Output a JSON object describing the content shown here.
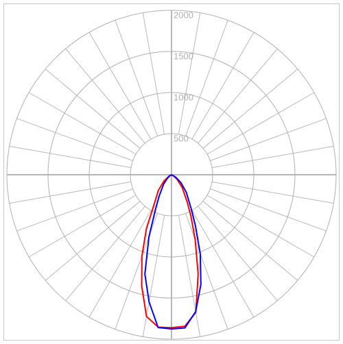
{
  "chart_data": {
    "type": "polar",
    "rlim": [
      0,
      2000
    ],
    "rticks": [
      500,
      1000,
      1500,
      2000
    ],
    "grid": true,
    "theta": [
      -90,
      -60,
      -50,
      -40,
      -30,
      -25,
      -20,
      -15,
      -10,
      -5,
      0,
      5,
      10,
      15,
      20,
      25,
      30,
      40,
      50,
      60,
      90
    ],
    "series": [
      {
        "color": "#ff0000",
        "values": [
          0,
          40,
          120,
          250,
          430,
          720,
          1050,
          1400,
          1750,
          1860,
          1860,
          1850,
          1700,
          1250,
          840,
          560,
          380,
          200,
          90,
          30,
          0
        ]
      },
      {
        "color": "#0000ff",
        "values": [
          0,
          20,
          60,
          150,
          300,
          455,
          800,
          1250,
          1570,
          1865,
          1875,
          1870,
          1690,
          1380,
          1020,
          690,
          480,
          280,
          150,
          60,
          0
        ]
      }
    ]
  }
}
